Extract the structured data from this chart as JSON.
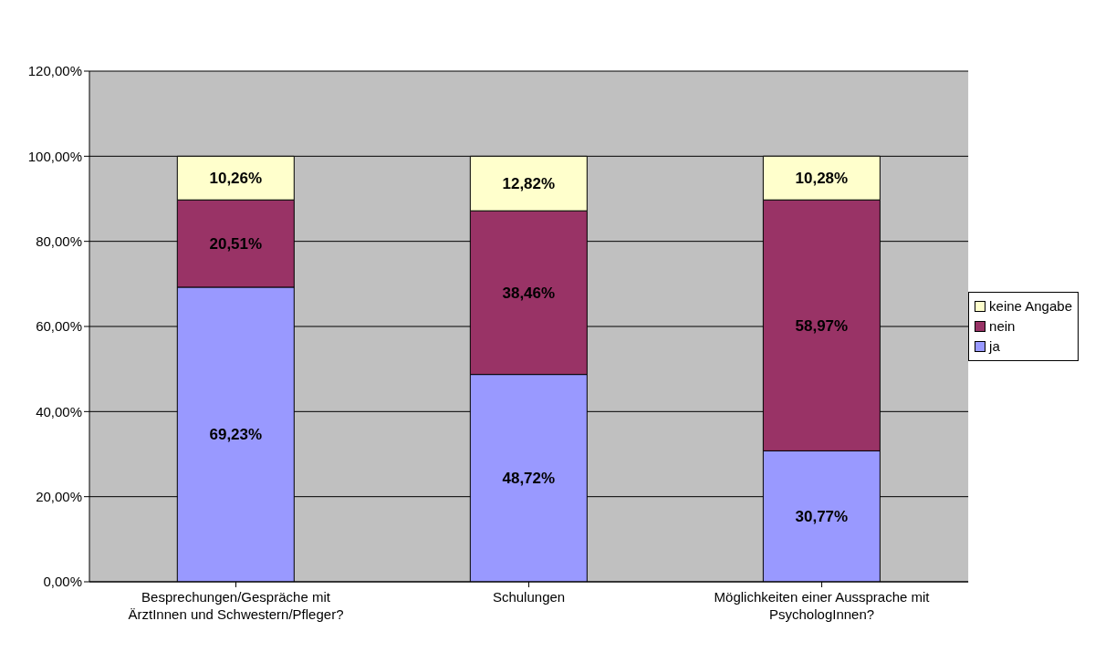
{
  "chart_data": {
    "type": "bar",
    "stacked": true,
    "categories": [
      "Besprechungen/Gespräche mit ÄrztInnen und Schwestern/Pfleger?",
      "Schulungen",
      "Möglichkeiten einer Aussprache mit PsychologInnen?"
    ],
    "series": [
      {
        "name": "ja",
        "color": "#9999ff",
        "values": [
          69.23,
          48.72,
          30.77
        ],
        "value_labels": [
          "69,23%",
          "48,72%",
          "30,77%"
        ]
      },
      {
        "name": "nein",
        "color": "#993366",
        "values": [
          20.51,
          38.46,
          58.97
        ],
        "value_labels": [
          "20,51%",
          "38,46%",
          "58,97%"
        ]
      },
      {
        "name": "keine Angabe",
        "color": "#ffffcc",
        "values": [
          10.26,
          12.82,
          10.28
        ],
        "value_labels": [
          "10,26%",
          "12,82%",
          "10,28%"
        ]
      }
    ],
    "ylim": [
      0,
      120
    ],
    "yticks": [
      {
        "value": 0,
        "label": "0,00%"
      },
      {
        "value": 20,
        "label": "20,00%"
      },
      {
        "value": 40,
        "label": "40,00%"
      },
      {
        "value": 60,
        "label": "60,00%"
      },
      {
        "value": 80,
        "label": "80,00%"
      },
      {
        "value": 100,
        "label": "100,00%"
      },
      {
        "value": 120,
        "label": "120,00%"
      }
    ],
    "grid": "y",
    "legend": "right"
  }
}
